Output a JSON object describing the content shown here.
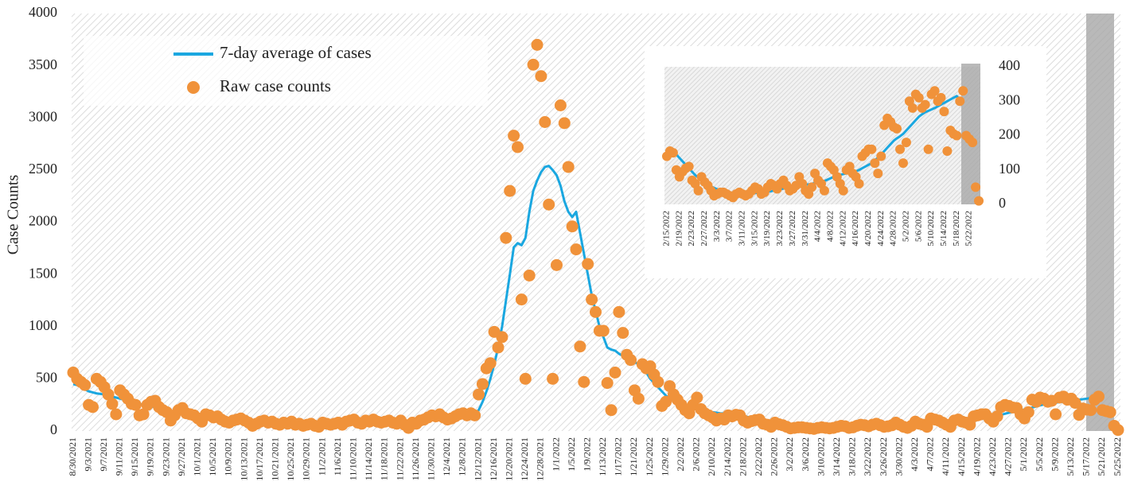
{
  "chart_data": [
    {
      "type": "line",
      "y_label": "Case Counts",
      "categories": [
        "8/30/2021",
        null,
        null,
        null,
        "9/3/2021",
        null,
        null,
        null,
        "9/7/2021",
        null,
        null,
        null,
        "9/11/2021",
        null,
        null,
        null,
        "9/15/2021",
        null,
        null,
        null,
        "9/19/2021",
        null,
        null,
        null,
        "9/23/2021",
        null,
        null,
        null,
        "9/27/2021",
        null,
        null,
        null,
        "10/1/2021",
        null,
        null,
        null,
        "10/5/2021",
        null,
        null,
        null,
        "10/9/2021",
        null,
        null,
        null,
        "10/13/2021",
        null,
        null,
        null,
        "10/17/2021",
        null,
        null,
        null,
        "10/21/2021",
        null,
        null,
        null,
        "10/25/2021",
        null,
        null,
        null,
        "10/29/2021",
        null,
        null,
        null,
        "11/2/2021",
        null,
        null,
        null,
        "11/6/2021",
        null,
        null,
        null,
        "11/10/2021",
        null,
        null,
        null,
        "11/14/2021",
        null,
        null,
        null,
        "11/18/2021",
        null,
        null,
        null,
        "11/22/2021",
        null,
        null,
        null,
        "11/26/2021",
        null,
        null,
        null,
        "11/30/2021",
        null,
        null,
        null,
        "12/4/2021",
        null,
        null,
        null,
        "12/8/2021",
        null,
        null,
        null,
        "12/12/2021",
        null,
        null,
        null,
        "12/16/2021",
        null,
        null,
        null,
        "12/20/2021",
        null,
        null,
        null,
        "12/24/2021",
        null,
        null,
        null,
        "12/28/2021",
        null,
        null,
        null,
        "1/1/2022",
        null,
        null,
        null,
        "1/5/2022",
        null,
        null,
        null,
        "1/9/2022",
        null,
        null,
        null,
        "1/13/2022",
        null,
        null,
        null,
        "1/17/2022",
        null,
        null,
        null,
        "1/21/2022",
        null,
        null,
        null,
        "1/25/2022",
        null,
        null,
        null,
        "1/29/2022",
        null,
        null,
        null,
        "2/2/2022",
        null,
        null,
        null,
        "2/6/2022",
        null,
        null,
        null,
        "2/10/2022",
        null,
        null,
        null,
        "2/14/2022",
        null,
        null,
        null,
        "2/18/2022",
        null,
        null,
        null,
        "2/22/2022",
        null,
        null,
        null,
        "2/26/2022",
        null,
        null,
        null,
        "3/2/2022",
        null,
        null,
        null,
        "3/6/2022",
        null,
        null,
        null,
        "3/10/2022",
        null,
        null,
        null,
        "3/14/2022",
        null,
        null,
        null,
        "3/18/2022",
        null,
        null,
        null,
        "3/22/2022",
        null,
        null,
        null,
        "3/26/2022",
        null,
        null,
        null,
        "3/30/2022",
        null,
        null,
        null,
        "4/3/2022",
        null,
        null,
        null,
        "4/7/2022",
        null,
        null,
        null,
        "4/11/2022",
        null,
        null,
        null,
        "4/15/2022",
        null,
        null,
        null,
        "4/19/2022",
        null,
        null,
        null,
        "4/23/2022",
        null,
        null,
        null,
        "4/27/2022",
        null,
        null,
        null,
        "5/1/2022",
        null,
        null,
        null,
        "5/5/2022",
        null,
        null,
        null,
        "5/9/2022",
        null,
        null,
        null,
        "5/13/2022",
        null,
        null,
        null,
        "5/17/2022",
        null,
        null,
        null,
        "5/21/2022",
        null,
        null,
        null,
        "5/25/2022"
      ],
      "series": [
        {
          "name": "7-day average of cases",
          "kind": "line",
          "color": "#1aa7e0",
          "values": [
            450,
            440,
            430,
            400,
            380,
            370,
            360,
            355,
            350,
            340,
            330,
            320,
            310,
            300,
            290,
            280,
            270,
            260,
            250,
            240,
            235,
            230,
            220,
            210,
            200,
            190,
            185,
            180,
            175,
            170,
            165,
            160,
            150,
            145,
            140,
            135,
            130,
            125,
            120,
            115,
            110,
            105,
            100,
            100,
            95,
            90,
            85,
            80,
            80,
            80,
            78,
            76,
            74,
            72,
            70,
            70,
            70,
            68,
            66,
            64,
            62,
            62,
            62,
            62,
            64,
            66,
            68,
            70,
            72,
            74,
            76,
            78,
            80,
            82,
            84,
            86,
            88,
            88,
            88,
            86,
            84,
            84,
            82,
            80,
            78,
            76,
            78,
            80,
            85,
            95,
            105,
            115,
            125,
            130,
            135,
            138,
            140,
            142,
            145,
            148,
            150,
            150,
            152,
            160,
            200,
            280,
            380,
            500,
            640,
            800,
            1000,
            1250,
            1500,
            1760,
            1800,
            1780,
            1850,
            2100,
            2300,
            2400,
            2480,
            2530,
            2540,
            2500,
            2450,
            2350,
            2200,
            2100,
            2050,
            2100,
            1900,
            1700,
            1500,
            1300,
            1150,
            1000,
            900,
            800,
            780,
            770,
            740,
            720,
            700,
            680,
            660,
            640,
            600,
            560,
            500,
            460,
            420,
            380,
            340,
            310,
            290,
            270,
            255,
            240,
            228,
            218,
            208,
            200,
            193,
            186,
            180,
            175,
            170,
            167,
            165,
            163,
            160,
            155,
            145,
            135,
            125,
            115,
            105,
            95,
            85,
            78,
            70,
            63,
            57,
            52,
            48,
            44,
            40,
            37,
            35,
            33,
            31,
            30,
            30,
            30,
            30,
            31,
            32,
            33,
            34,
            35,
            36,
            37,
            38,
            40,
            42,
            44,
            46,
            48,
            50,
            52,
            54,
            55,
            56,
            57,
            58,
            60,
            62,
            64,
            66,
            68,
            72,
            76,
            80,
            84,
            86,
            88,
            90,
            92,
            94,
            96,
            100,
            105,
            110,
            115,
            120,
            128,
            136,
            145,
            155,
            165,
            175,
            185,
            192,
            198,
            205,
            215,
            225,
            235,
            245,
            255,
            262,
            268,
            272,
            276,
            280,
            285,
            290,
            295,
            300,
            305,
            310,
            315,
            305,
            null,
            null,
            null,
            null,
            null,
            null
          ]
        },
        {
          "name": "Raw case counts",
          "kind": "dots",
          "color": "#f0923a",
          "values": [
            560,
            500,
            470,
            440,
            250,
            230,
            500,
            470,
            420,
            350,
            260,
            160,
            390,
            350,
            310,
            260,
            250,
            150,
            160,
            250,
            280,
            290,
            230,
            200,
            180,
            100,
            150,
            200,
            220,
            170,
            160,
            150,
            120,
            90,
            160,
            150,
            130,
            140,
            110,
            90,
            80,
            100,
            110,
            120,
            100,
            80,
            50,
            70,
            90,
            100,
            80,
            90,
            70,
            60,
            80,
            70,
            90,
            60,
            70,
            50,
            60,
            70,
            50,
            40,
            80,
            70,
            60,
            70,
            80,
            60,
            90,
            100,
            110,
            80,
            70,
            100,
            90,
            110,
            90,
            80,
            90,
            100,
            80,
            70,
            100,
            60,
            30,
            80,
            70,
            100,
            110,
            130,
            150,
            140,
            160,
            130,
            110,
            120,
            140,
            160,
            170,
            150,
            170,
            150,
            350,
            450,
            600,
            650,
            950,
            800,
            900,
            1850,
            2300,
            2830,
            2720,
            1260,
            500,
            1490,
            3510,
            3700,
            3400,
            2960,
            2170,
            500,
            1590,
            3120,
            2950,
            2530,
            1960,
            1740,
            810,
            470,
            1600,
            1260,
            1140,
            960,
            960,
            460,
            200,
            560,
            1140,
            940,
            730,
            680,
            390,
            310,
            640,
            600,
            620,
            540,
            470,
            240,
            280,
            430,
            350,
            300,
            250,
            200,
            170,
            250,
            320,
            210,
            170,
            150,
            130,
            100,
            120,
            110,
            150,
            140,
            155,
            150,
            100,
            80,
            95,
            105,
            110,
            70,
            60,
            40,
            80,
            65,
            55,
            40,
            25,
            30,
            35,
            35,
            30,
            25,
            20,
            30,
            35,
            30,
            25,
            30,
            40,
            50,
            45,
            30,
            35,
            50,
            60,
            55,
            45,
            60,
            70,
            55,
            40,
            45,
            55,
            80,
            60,
            40,
            30,
            50,
            90,
            70,
            60,
            40,
            120,
            110,
            100,
            80,
            60,
            40,
            100,
            110,
            90,
            80,
            60,
            140,
            150,
            160,
            160,
            120,
            90,
            140,
            230,
            250,
            240,
            225,
            220,
            160,
            120,
            180,
            300,
            280,
            320,
            310,
            280,
            290,
            160,
            320,
            330,
            300,
            310,
            270,
            155,
            215,
            205,
            200,
            300,
            330,
            200,
            190,
            180,
            50,
            10
          ]
        }
      ],
      "ylim": [
        0,
        4000
      ],
      "yticks": [
        0,
        500,
        1000,
        1500,
        2000,
        2500,
        3000,
        3500,
        4000
      ]
    },
    {
      "type": "line",
      "categories": [
        "2/15/2022",
        null,
        null,
        null,
        "2/19/2022",
        null,
        null,
        null,
        "2/23/2022",
        null,
        null,
        null,
        "2/27/2022",
        null,
        null,
        null,
        "3/3/2022",
        null,
        null,
        null,
        "3/7/2022",
        null,
        null,
        null,
        "3/11/2022",
        null,
        null,
        null,
        "3/15/2022",
        null,
        null,
        null,
        "3/19/2022",
        null,
        null,
        null,
        "3/23/2022",
        null,
        null,
        null,
        "3/27/2022",
        null,
        null,
        null,
        "3/31/2022",
        null,
        null,
        null,
        "4/4/2022",
        null,
        null,
        null,
        "4/8/2022",
        null,
        null,
        null,
        "4/12/2022",
        null,
        null,
        null,
        "4/16/2022",
        null,
        null,
        null,
        "4/20/2022",
        null,
        null,
        null,
        "4/24/2022",
        null,
        null,
        null,
        "4/28/2022",
        null,
        null,
        null,
        "5/2/2022",
        null,
        null,
        null,
        "5/6/2022",
        null,
        null,
        null,
        "5/10/2022",
        null,
        null,
        null,
        "5/14/2022",
        null,
        null,
        null,
        "5/18/2022",
        null,
        null,
        null,
        "5/22/2022",
        null,
        null,
        null
      ],
      "series": [
        {
          "kind": "line",
          "color": "#1aa7e0",
          "values": [
            163,
            160,
            155,
            145,
            135,
            125,
            115,
            105,
            95,
            85,
            78,
            70,
            63,
            57,
            52,
            48,
            44,
            40,
            37,
            35,
            33,
            31,
            30,
            30,
            30,
            30,
            31,
            32,
            33,
            34,
            35,
            36,
            37,
            38,
            40,
            42,
            44,
            46,
            48,
            50,
            52,
            54,
            55,
            56,
            57,
            58,
            60,
            62,
            64,
            66,
            68,
            72,
            76,
            80,
            84,
            86,
            88,
            90,
            92,
            94,
            96,
            100,
            105,
            110,
            115,
            120,
            128,
            136,
            145,
            155,
            165,
            175,
            185,
            192,
            198,
            205,
            215,
            225,
            235,
            245,
            255,
            262,
            268,
            272,
            276,
            280,
            285,
            290,
            295,
            300,
            305,
            310,
            315,
            305,
            null,
            null,
            null,
            null,
            null,
            null
          ]
        },
        {
          "kind": "dots",
          "color": "#f0923a",
          "values": [
            140,
            155,
            150,
            100,
            80,
            95,
            105,
            110,
            70,
            60,
            40,
            80,
            65,
            55,
            40,
            25,
            30,
            35,
            35,
            30,
            25,
            20,
            30,
            35,
            30,
            25,
            30,
            40,
            50,
            45,
            30,
            35,
            50,
            60,
            55,
            45,
            60,
            70,
            55,
            40,
            45,
            55,
            80,
            60,
            40,
            30,
            50,
            90,
            70,
            60,
            40,
            120,
            110,
            100,
            80,
            60,
            40,
            100,
            110,
            90,
            80,
            60,
            140,
            150,
            160,
            160,
            120,
            90,
            140,
            230,
            250,
            240,
            225,
            220,
            160,
            120,
            180,
            300,
            280,
            320,
            310,
            280,
            290,
            160,
            320,
            330,
            300,
            310,
            270,
            155,
            215,
            205,
            200,
            300,
            330,
            200,
            190,
            180,
            50,
            10
          ]
        }
      ],
      "ylim": [
        0,
        400
      ],
      "yticks": [
        0,
        100,
        200,
        300,
        400
      ]
    }
  ]
}
